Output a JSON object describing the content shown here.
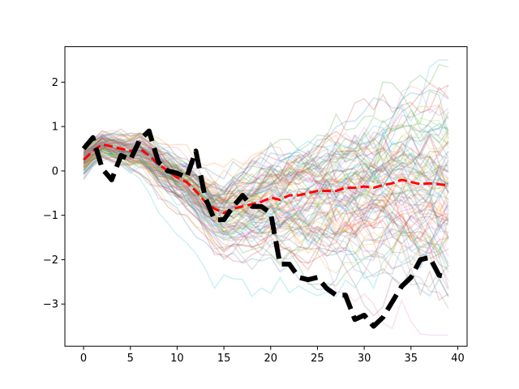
{
  "chart_data": {
    "type": "line",
    "title": "",
    "xlabel": "",
    "ylabel": "",
    "xlim": [
      -2,
      41
    ],
    "ylim": [
      -3.95,
      2.8
    ],
    "x_ticks": [
      0,
      5,
      10,
      15,
      20,
      25,
      30,
      35,
      40
    ],
    "y_ticks": [
      -3,
      -2,
      -1,
      0,
      1,
      2
    ],
    "grid": false,
    "legend": "none",
    "background_traces": {
      "description": "many semi-transparent random-walk traces in varied colors",
      "count": 100,
      "opacity": 0.22,
      "length": 40
    },
    "series": [
      {
        "style": "dashed",
        "color": "#ff0000",
        "line_width": 3,
        "x": [
          0,
          1,
          2,
          3,
          4,
          5,
          6,
          7,
          8,
          9,
          10,
          11,
          12,
          13,
          14,
          15,
          16,
          17,
          18,
          19,
          20,
          21,
          22,
          23,
          24,
          25,
          26,
          27,
          28,
          29,
          30,
          31,
          32,
          33,
          34,
          35,
          36,
          37,
          38,
          39
        ],
        "values": [
          0.25,
          0.45,
          0.6,
          0.55,
          0.5,
          0.45,
          0.5,
          0.35,
          0.15,
          0.0,
          -0.15,
          -0.25,
          -0.45,
          -0.7,
          -0.85,
          -0.95,
          -0.85,
          -0.8,
          -0.75,
          -0.7,
          -0.6,
          -0.65,
          -0.55,
          -0.55,
          -0.5,
          -0.45,
          -0.45,
          -0.45,
          -0.38,
          -0.38,
          -0.35,
          -0.38,
          -0.32,
          -0.28,
          -0.2,
          -0.25,
          -0.3,
          -0.28,
          -0.3,
          -0.33
        ]
      },
      {
        "style": "dashed",
        "color": "#000000",
        "line_width": 6,
        "x": [
          0,
          1,
          2,
          3,
          4,
          5,
          6,
          7,
          8,
          9,
          10,
          11,
          12,
          13,
          14,
          15,
          16,
          17,
          18,
          19,
          20,
          21,
          22,
          23,
          24,
          25,
          26,
          27,
          28,
          29,
          30,
          31,
          32,
          33,
          34,
          35,
          36,
          37,
          38,
          39
        ],
        "values": [
          0.5,
          0.75,
          0.05,
          -0.2,
          0.35,
          0.25,
          0.7,
          0.9,
          0.2,
          0.0,
          -0.05,
          -0.15,
          0.45,
          -0.6,
          -1.1,
          -1.1,
          -0.8,
          -0.55,
          -0.8,
          -0.8,
          -0.95,
          -2.1,
          -2.1,
          -2.4,
          -2.45,
          -2.4,
          -2.65,
          -2.8,
          -2.8,
          -3.35,
          -3.25,
          -3.5,
          -3.3,
          -2.95,
          -2.6,
          -2.4,
          -2.0,
          -1.95,
          -2.35,
          -2.4
        ]
      }
    ]
  }
}
